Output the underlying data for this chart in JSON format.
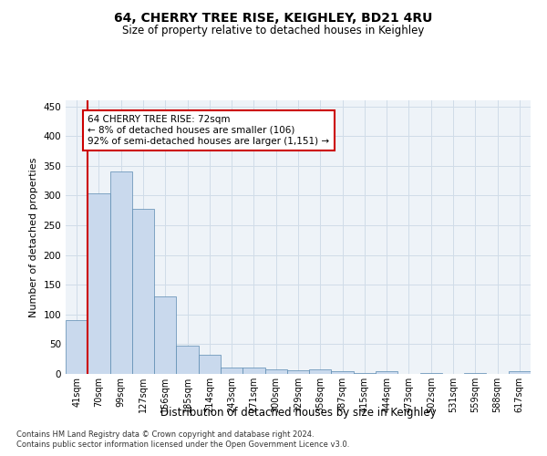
{
  "title": "64, CHERRY TREE RISE, KEIGHLEY, BD21 4RU",
  "subtitle": "Size of property relative to detached houses in Keighley",
  "xlabel": "Distribution of detached houses by size in Keighley",
  "ylabel": "Number of detached properties",
  "footnote1": "Contains HM Land Registry data © Crown copyright and database right 2024.",
  "footnote2": "Contains public sector information licensed under the Open Government Licence v3.0.",
  "annotation_line1": "64 CHERRY TREE RISE: 72sqm",
  "annotation_line2": "← 8% of detached houses are smaller (106)",
  "annotation_line3": "92% of semi-detached houses are larger (1,151) →",
  "bar_color": "#c9d9ed",
  "bar_edge_color": "#5a8ab0",
  "line_color": "#cc0000",
  "annotation_box_edge": "#cc0000",
  "grid_color": "#d0dce8",
  "background_color": "#eef3f8",
  "bin_labels": [
    "41sqm",
    "70sqm",
    "99sqm",
    "127sqm",
    "156sqm",
    "185sqm",
    "214sqm",
    "243sqm",
    "271sqm",
    "300sqm",
    "329sqm",
    "358sqm",
    "387sqm",
    "415sqm",
    "444sqm",
    "473sqm",
    "502sqm",
    "531sqm",
    "559sqm",
    "588sqm",
    "617sqm"
  ],
  "bar_values": [
    90,
    303,
    340,
    278,
    130,
    47,
    32,
    10,
    11,
    8,
    6,
    8,
    4,
    2,
    4,
    0,
    1,
    0,
    1,
    0,
    4
  ],
  "ylim": [
    0,
    460
  ],
  "yticks": [
    0,
    50,
    100,
    150,
    200,
    250,
    300,
    350,
    400,
    450
  ],
  "red_line_bin_index": 1,
  "figsize": [
    6.0,
    5.0
  ],
  "dpi": 100
}
